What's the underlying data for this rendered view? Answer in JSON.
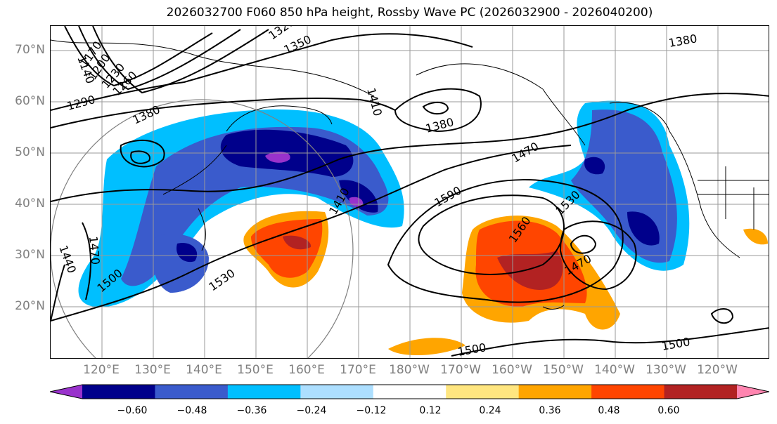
{
  "title": "2026032700 F060 850 hPa height, Rossby Wave PC (2026032900 - 2026040200)",
  "lat_labels": [
    "70°N",
    "60°N",
    "50°N",
    "40°N",
    "30°N",
    "20°N"
  ],
  "lon_labels": [
    "120°E",
    "130°E",
    "140°E",
    "150°E",
    "160°E",
    "170°E",
    "180°W",
    "170°W",
    "160°W",
    "150°W",
    "140°W",
    "130°W",
    "120°W"
  ],
  "contour_labels": [
    "1140",
    "1170",
    "1200",
    "1230",
    "1260",
    "1290",
    "1320",
    "1350",
    "1380",
    "1410",
    "1380",
    "1380",
    "1470",
    "1530",
    "1590",
    "1560",
    "1470",
    "1530",
    "1500",
    "1440",
    "1470",
    "1500",
    "1500",
    "1410"
  ],
  "colorbar": {
    "ticks": [
      "−0.60",
      "−0.48",
      "−0.36",
      "−0.24",
      "−0.12",
      "0.12",
      "0.24",
      "0.36",
      "0.48",
      "0.60"
    ],
    "colors": [
      "#9932CC",
      "#00008B",
      "#3A5BCC",
      "#00BFFF",
      "#ADDFFF",
      "#FFFFFF",
      "#FFE680",
      "#FFA500",
      "#FF4500",
      "#B22222",
      "#FF85B0"
    ]
  }
}
